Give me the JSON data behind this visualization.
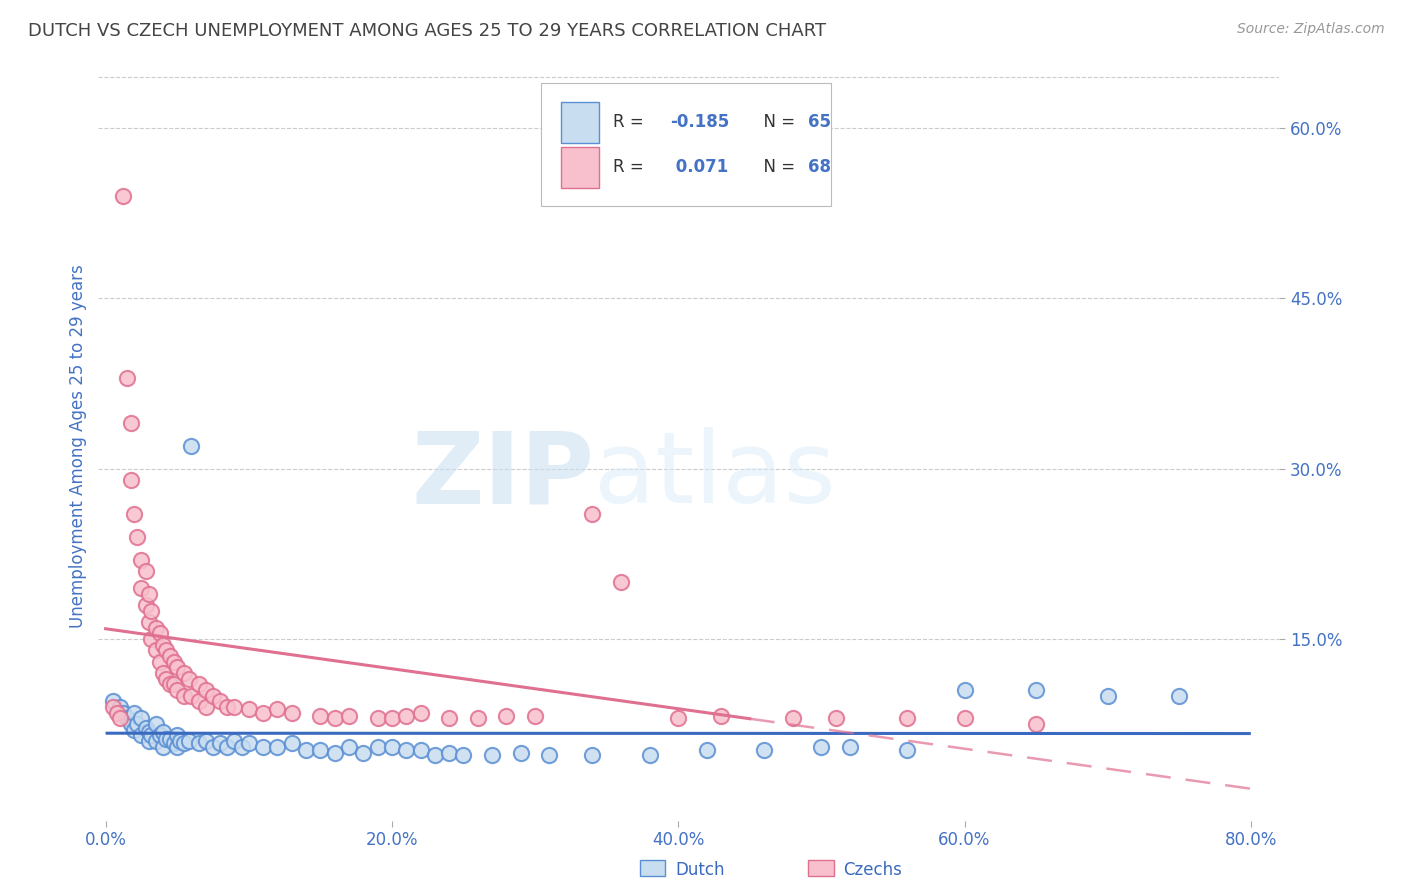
{
  "title": "DUTCH VS CZECH UNEMPLOYMENT AMONG AGES 25 TO 29 YEARS CORRELATION CHART",
  "source": "Source: ZipAtlas.com",
  "ylabel": "Unemployment Among Ages 25 to 29 years",
  "xlim": [
    -0.005,
    0.82
  ],
  "ylim": [
    -0.01,
    0.65
  ],
  "xticks": [
    0.0,
    0.2,
    0.4,
    0.6,
    0.8
  ],
  "xtick_labels": [
    "0.0%",
    "20.0%",
    "40.0%",
    "60.0%",
    "80.0%"
  ],
  "ytick_labels": [
    "15.0%",
    "30.0%",
    "45.0%",
    "60.0%"
  ],
  "yticks": [
    0.15,
    0.3,
    0.45,
    0.6
  ],
  "dutch_fill": "#c8ddf0",
  "dutch_edge": "#5b8fd4",
  "czech_fill": "#f8c0cc",
  "czech_edge": "#e07090",
  "dutch_line_color": "#3a6abf",
  "czech_line_color": "#e07090",
  "legend_r_color": "#222222",
  "legend_n_color": "#4472c4",
  "axis_label_color": "#4472c4",
  "grid_color": "#cccccc",
  "background_color": "#ffffff",
  "title_color": "#444444",
  "dutch_scatter": [
    [
      0.005,
      0.095
    ],
    [
      0.01,
      0.09
    ],
    [
      0.012,
      0.085
    ],
    [
      0.015,
      0.08
    ],
    [
      0.018,
      0.075
    ],
    [
      0.02,
      0.085
    ],
    [
      0.02,
      0.07
    ],
    [
      0.022,
      0.075
    ],
    [
      0.025,
      0.08
    ],
    [
      0.025,
      0.065
    ],
    [
      0.028,
      0.072
    ],
    [
      0.03,
      0.068
    ],
    [
      0.03,
      0.06
    ],
    [
      0.032,
      0.065
    ],
    [
      0.035,
      0.075
    ],
    [
      0.035,
      0.06
    ],
    [
      0.038,
      0.065
    ],
    [
      0.04,
      0.068
    ],
    [
      0.04,
      0.055
    ],
    [
      0.042,
      0.062
    ],
    [
      0.045,
      0.062
    ],
    [
      0.048,
      0.058
    ],
    [
      0.05,
      0.065
    ],
    [
      0.05,
      0.055
    ],
    [
      0.052,
      0.06
    ],
    [
      0.055,
      0.058
    ],
    [
      0.058,
      0.06
    ],
    [
      0.06,
      0.32
    ],
    [
      0.065,
      0.058
    ],
    [
      0.07,
      0.06
    ],
    [
      0.075,
      0.055
    ],
    [
      0.08,
      0.058
    ],
    [
      0.085,
      0.055
    ],
    [
      0.09,
      0.06
    ],
    [
      0.095,
      0.055
    ],
    [
      0.1,
      0.058
    ],
    [
      0.11,
      0.055
    ],
    [
      0.12,
      0.055
    ],
    [
      0.13,
      0.058
    ],
    [
      0.14,
      0.052
    ],
    [
      0.15,
      0.052
    ],
    [
      0.16,
      0.05
    ],
    [
      0.17,
      0.055
    ],
    [
      0.18,
      0.05
    ],
    [
      0.19,
      0.055
    ],
    [
      0.2,
      0.055
    ],
    [
      0.21,
      0.052
    ],
    [
      0.22,
      0.052
    ],
    [
      0.23,
      0.048
    ],
    [
      0.24,
      0.05
    ],
    [
      0.25,
      0.048
    ],
    [
      0.27,
      0.048
    ],
    [
      0.29,
      0.05
    ],
    [
      0.31,
      0.048
    ],
    [
      0.34,
      0.048
    ],
    [
      0.38,
      0.048
    ],
    [
      0.42,
      0.052
    ],
    [
      0.46,
      0.052
    ],
    [
      0.5,
      0.055
    ],
    [
      0.52,
      0.055
    ],
    [
      0.56,
      0.052
    ],
    [
      0.6,
      0.105
    ],
    [
      0.65,
      0.105
    ],
    [
      0.7,
      0.1
    ],
    [
      0.75,
      0.1
    ]
  ],
  "czech_scatter": [
    [
      0.005,
      0.09
    ],
    [
      0.008,
      0.085
    ],
    [
      0.01,
      0.08
    ],
    [
      0.012,
      0.54
    ],
    [
      0.015,
      0.38
    ],
    [
      0.018,
      0.34
    ],
    [
      0.018,
      0.29
    ],
    [
      0.02,
      0.26
    ],
    [
      0.022,
      0.24
    ],
    [
      0.025,
      0.22
    ],
    [
      0.025,
      0.195
    ],
    [
      0.028,
      0.21
    ],
    [
      0.028,
      0.18
    ],
    [
      0.03,
      0.19
    ],
    [
      0.03,
      0.165
    ],
    [
      0.032,
      0.175
    ],
    [
      0.032,
      0.15
    ],
    [
      0.035,
      0.16
    ],
    [
      0.035,
      0.14
    ],
    [
      0.038,
      0.155
    ],
    [
      0.038,
      0.13
    ],
    [
      0.04,
      0.145
    ],
    [
      0.04,
      0.12
    ],
    [
      0.042,
      0.14
    ],
    [
      0.042,
      0.115
    ],
    [
      0.045,
      0.135
    ],
    [
      0.045,
      0.11
    ],
    [
      0.048,
      0.13
    ],
    [
      0.048,
      0.11
    ],
    [
      0.05,
      0.125
    ],
    [
      0.05,
      0.105
    ],
    [
      0.055,
      0.12
    ],
    [
      0.055,
      0.1
    ],
    [
      0.058,
      0.115
    ],
    [
      0.06,
      0.1
    ],
    [
      0.065,
      0.11
    ],
    [
      0.065,
      0.095
    ],
    [
      0.07,
      0.105
    ],
    [
      0.07,
      0.09
    ],
    [
      0.075,
      0.1
    ],
    [
      0.08,
      0.095
    ],
    [
      0.085,
      0.09
    ],
    [
      0.09,
      0.09
    ],
    [
      0.1,
      0.088
    ],
    [
      0.11,
      0.085
    ],
    [
      0.12,
      0.088
    ],
    [
      0.13,
      0.085
    ],
    [
      0.15,
      0.082
    ],
    [
      0.16,
      0.08
    ],
    [
      0.17,
      0.082
    ],
    [
      0.19,
      0.08
    ],
    [
      0.2,
      0.08
    ],
    [
      0.21,
      0.082
    ],
    [
      0.22,
      0.085
    ],
    [
      0.24,
      0.08
    ],
    [
      0.26,
      0.08
    ],
    [
      0.28,
      0.082
    ],
    [
      0.3,
      0.082
    ],
    [
      0.34,
      0.26
    ],
    [
      0.36,
      0.2
    ],
    [
      0.4,
      0.08
    ],
    [
      0.43,
      0.082
    ],
    [
      0.48,
      0.08
    ],
    [
      0.51,
      0.08
    ],
    [
      0.56,
      0.08
    ],
    [
      0.6,
      0.08
    ],
    [
      0.65,
      0.075
    ]
  ]
}
